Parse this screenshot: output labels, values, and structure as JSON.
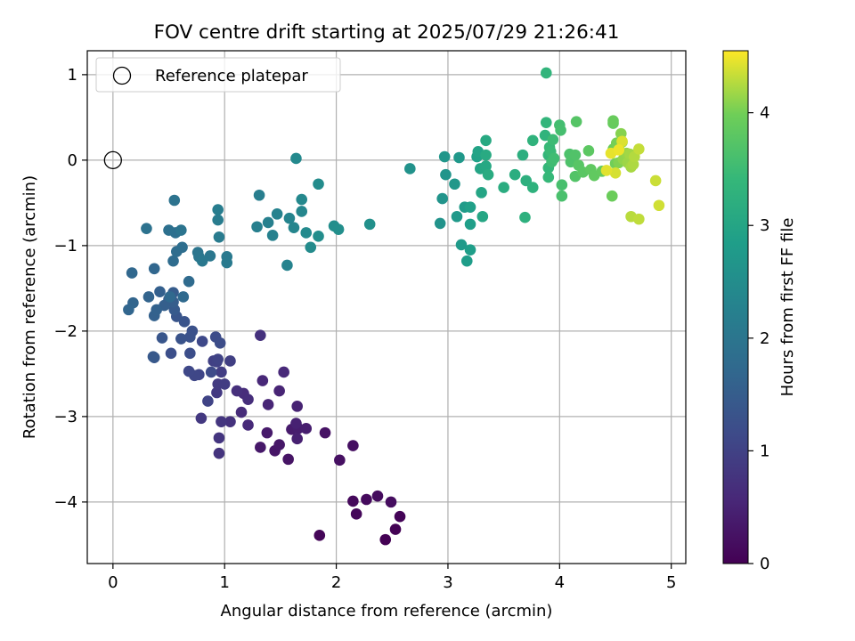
{
  "chart_data": {
    "type": "scatter",
    "title": "FOV centre drift starting at 2025/07/29 21:26:41",
    "xlabel": "Angular distance from reference (arcmin)",
    "ylabel": "Rotation from reference (arcmin)",
    "xlim": [
      -0.23,
      5.13
    ],
    "ylim": [
      -4.72,
      1.28
    ],
    "x_ticks": [
      "0",
      "1",
      "2",
      "3",
      "4",
      "5"
    ],
    "y_ticks": [
      "1",
      "0",
      "−1",
      "−2",
      "−3",
      "−4"
    ],
    "grid": true,
    "legend": {
      "placement": "top-left",
      "entries": [
        "Reference platepar"
      ]
    },
    "colorbar": {
      "label": "Hours from first FF file",
      "range": [
        0,
        4.55
      ],
      "ticks": [
        "0",
        "1",
        "2",
        "3",
        "4"
      ],
      "colormap": "viridis"
    },
    "reference_point": {
      "x": 0,
      "y": 0
    },
    "series": [
      {
        "values": [
          [
            2.44,
            -4.44
          ],
          [
            2.53,
            -4.32
          ],
          [
            2.57,
            -4.17
          ],
          [
            1.85,
            -4.39
          ],
          [
            2.18,
            -4.14
          ],
          [
            2.15,
            -3.99
          ],
          [
            2.27,
            -3.97
          ],
          [
            2.37,
            -3.93
          ],
          [
            2.49,
            -4.0
          ],
          [
            2.15,
            -3.34
          ],
          [
            2.03,
            -3.51
          ],
          [
            1.9,
            -3.19
          ],
          [
            1.57,
            -3.5
          ],
          [
            1.45,
            -3.4
          ],
          [
            1.49,
            -3.33
          ],
          [
            1.32,
            -3.36
          ],
          [
            1.38,
            -3.19
          ],
          [
            1.6,
            -3.15
          ],
          [
            1.66,
            -3.14
          ],
          [
            1.73,
            -3.14
          ],
          [
            1.65,
            -3.26
          ],
          [
            1.64,
            -3.08
          ],
          [
            1.65,
            -2.88
          ],
          [
            1.49,
            -2.7
          ],
          [
            1.39,
            -2.86
          ],
          [
            1.34,
            -2.58
          ],
          [
            1.53,
            -2.48
          ],
          [
            1.21,
            -3.1
          ],
          [
            1.15,
            -2.95
          ],
          [
            1.17,
            -2.73
          ],
          [
            1.21,
            -2.8
          ],
          [
            1.11,
            -2.7
          ],
          [
            1.32,
            -2.05
          ],
          [
            1.05,
            -3.06
          ],
          [
            0.95,
            -3.43
          ],
          [
            0.95,
            -3.25
          ],
          [
            0.97,
            -3.06
          ],
          [
            0.79,
            -3.02
          ],
          [
            0.93,
            -2.72
          ],
          [
            0.94,
            -2.62
          ],
          [
            1.0,
            -2.62
          ],
          [
            0.97,
            -2.48
          ],
          [
            1.05,
            -2.35
          ],
          [
            0.9,
            -2.35
          ],
          [
            0.93,
            -2.36
          ],
          [
            0.94,
            -2.33
          ],
          [
            0.85,
            -2.82
          ],
          [
            0.77,
            -2.51
          ],
          [
            0.73,
            -2.52
          ],
          [
            0.68,
            -2.47
          ],
          [
            0.8,
            -2.12
          ],
          [
            0.88,
            -2.48
          ],
          [
            0.92,
            -2.07
          ],
          [
            0.96,
            -2.14
          ],
          [
            0.69,
            -2.26
          ],
          [
            0.52,
            -2.26
          ],
          [
            0.71,
            -2.0
          ],
          [
            0.69,
            -2.07
          ],
          [
            0.61,
            -2.09
          ],
          [
            0.64,
            -1.89
          ],
          [
            0.57,
            -1.83
          ],
          [
            0.44,
            -2.08
          ],
          [
            0.37,
            -2.31
          ],
          [
            0.36,
            -2.3
          ],
          [
            0.55,
            -1.75
          ],
          [
            0.5,
            -1.63
          ],
          [
            0.54,
            -1.55
          ],
          [
            0.54,
            -1.66
          ],
          [
            0.46,
            -1.7
          ],
          [
            0.42,
            -1.54
          ],
          [
            0.37,
            -1.82
          ],
          [
            0.39,
            -1.75
          ],
          [
            0.32,
            -1.6
          ],
          [
            0.18,
            -1.67
          ],
          [
            0.14,
            -1.75
          ],
          [
            0.37,
            -1.27
          ],
          [
            0.17,
            -1.32
          ],
          [
            0.51,
            -1.6
          ],
          [
            0.63,
            -1.6
          ],
          [
            0.68,
            -1.42
          ],
          [
            0.54,
            -1.18
          ],
          [
            0.57,
            -1.07
          ],
          [
            0.62,
            -1.02
          ],
          [
            0.56,
            -0.85
          ],
          [
            0.5,
            -0.82
          ],
          [
            0.3,
            -0.8
          ],
          [
            0.55,
            -0.47
          ],
          [
            0.61,
            -0.82
          ],
          [
            0.76,
            -1.08
          ],
          [
            0.77,
            -1.13
          ],
          [
            0.87,
            -1.12
          ],
          [
            0.8,
            -1.18
          ],
          [
            1.02,
            -1.13
          ],
          [
            1.02,
            -1.2
          ],
          [
            0.95,
            -0.9
          ],
          [
            0.94,
            -0.7
          ],
          [
            0.94,
            -0.58
          ],
          [
            1.31,
            -0.41
          ],
          [
            1.29,
            -0.78
          ],
          [
            1.39,
            -0.73
          ],
          [
            1.43,
            -0.88
          ],
          [
            1.47,
            -0.63
          ],
          [
            1.56,
            -1.23
          ],
          [
            1.58,
            -0.68
          ],
          [
            1.62,
            -0.79
          ],
          [
            1.69,
            -0.6
          ],
          [
            1.69,
            -0.46
          ],
          [
            1.64,
            0.02
          ],
          [
            1.73,
            -0.85
          ],
          [
            1.77,
            -1.02
          ],
          [
            1.84,
            -0.28
          ],
          [
            1.84,
            -0.89
          ],
          [
            1.98,
            -0.77
          ],
          [
            2.02,
            -0.81
          ],
          [
            2.3,
            -0.75
          ],
          [
            2.66,
            -0.1
          ],
          [
            2.93,
            -0.74
          ],
          [
            2.95,
            -0.45
          ],
          [
            2.98,
            -0.17
          ],
          [
            2.97,
            0.04
          ],
          [
            3.06,
            -0.28
          ],
          [
            3.1,
            0.03
          ],
          [
            3.08,
            -0.66
          ],
          [
            3.12,
            -0.99
          ],
          [
            3.15,
            -0.55
          ],
          [
            3.17,
            -1.18
          ],
          [
            3.2,
            -1.05
          ],
          [
            3.2,
            -0.75
          ],
          [
            3.2,
            -0.55
          ],
          [
            3.26,
            0.04
          ],
          [
            3.27,
            0.06
          ],
          [
            3.27,
            0.1
          ],
          [
            3.29,
            -0.1
          ],
          [
            3.3,
            -0.38
          ],
          [
            3.31,
            -0.66
          ],
          [
            3.33,
            -0.1
          ],
          [
            3.34,
            -0.07
          ],
          [
            3.34,
            0.23
          ],
          [
            3.34,
            0.06
          ],
          [
            3.36,
            -0.17
          ],
          [
            3.5,
            -0.32
          ],
          [
            3.6,
            -0.17
          ],
          [
            3.67,
            0.06
          ],
          [
            3.7,
            -0.24
          ],
          [
            3.69,
            -0.67
          ],
          [
            3.76,
            -0.32
          ],
          [
            3.76,
            0.23
          ],
          [
            3.87,
            0.29
          ],
          [
            3.88,
            1.02
          ],
          [
            3.88,
            0.44
          ],
          [
            3.9,
            0.06
          ],
          [
            3.9,
            -0.09
          ],
          [
            3.9,
            -0.2
          ],
          [
            3.91,
            0.15
          ],
          [
            3.92,
            0.1
          ],
          [
            3.94,
            0.24
          ],
          [
            3.93,
            -0.02
          ],
          [
            3.95,
            0.02
          ],
          [
            4.0,
            0.41
          ],
          [
            4.01,
            0.35
          ],
          [
            4.02,
            -0.29
          ],
          [
            4.02,
            -0.42
          ],
          [
            4.09,
            0.07
          ],
          [
            4.1,
            -0.02
          ],
          [
            4.14,
            0.06
          ],
          [
            4.14,
            -0.19
          ],
          [
            4.15,
            0.45
          ],
          [
            4.17,
            -0.06
          ],
          [
            4.21,
            -0.14
          ],
          [
            4.26,
            0.11
          ],
          [
            4.28,
            -0.11
          ],
          [
            4.31,
            -0.18
          ],
          [
            4.38,
            -0.13
          ],
          [
            4.48,
            0.43
          ],
          [
            4.48,
            0.46
          ],
          [
            4.47,
            -0.42
          ],
          [
            4.48,
            0.13
          ],
          [
            4.5,
            -0.04
          ],
          [
            4.51,
            0.2
          ],
          [
            4.53,
            0.13
          ],
          [
            4.53,
            -0.03
          ],
          [
            4.55,
            0.31
          ],
          [
            4.56,
            0.21
          ],
          [
            4.57,
            0.01
          ],
          [
            4.6,
            0.08
          ],
          [
            4.61,
            -0.03
          ],
          [
            4.63,
            0.07
          ],
          [
            4.64,
            -0.08
          ],
          [
            4.66,
            -0.05
          ],
          [
            4.67,
            0.04
          ],
          [
            4.64,
            -0.66
          ],
          [
            4.71,
            -0.69
          ],
          [
            4.71,
            0.13
          ],
          [
            4.86,
            -0.24
          ],
          [
            4.89,
            -0.53
          ],
          [
            4.5,
            -0.15
          ],
          [
            4.56,
            0.22
          ],
          [
            4.42,
            -0.12
          ],
          [
            4.46,
            0.08
          ],
          [
            4.53,
            0.12
          ]
        ]
      }
    ]
  }
}
